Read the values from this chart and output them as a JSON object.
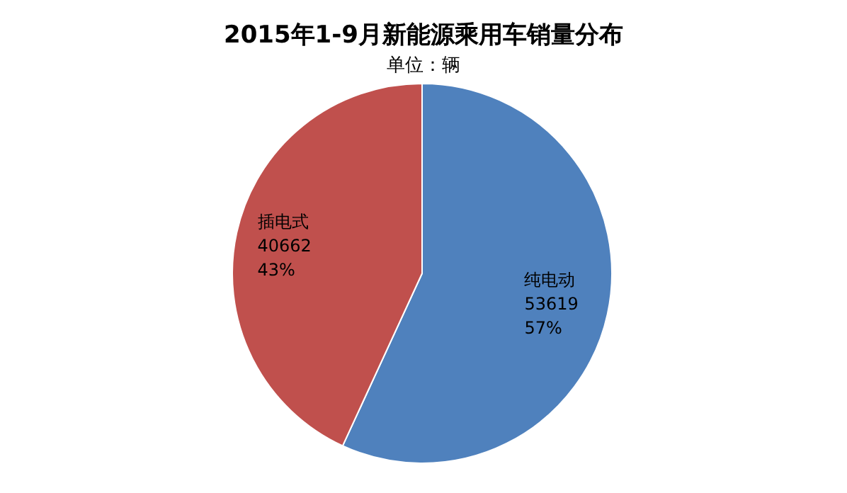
{
  "chart_data": {
    "type": "pie",
    "title": "2015年1-9月新能源乘用车销量分布",
    "subtitle": "单位：辆",
    "categories": [
      "纯电动",
      "插电式"
    ],
    "values": [
      53619,
      40662
    ],
    "colors": [
      "#4f81bd",
      "#c0504d"
    ],
    "value_labels": [
      "53619\n57%",
      "40662\n43%"
    ],
    "legend": false
  }
}
